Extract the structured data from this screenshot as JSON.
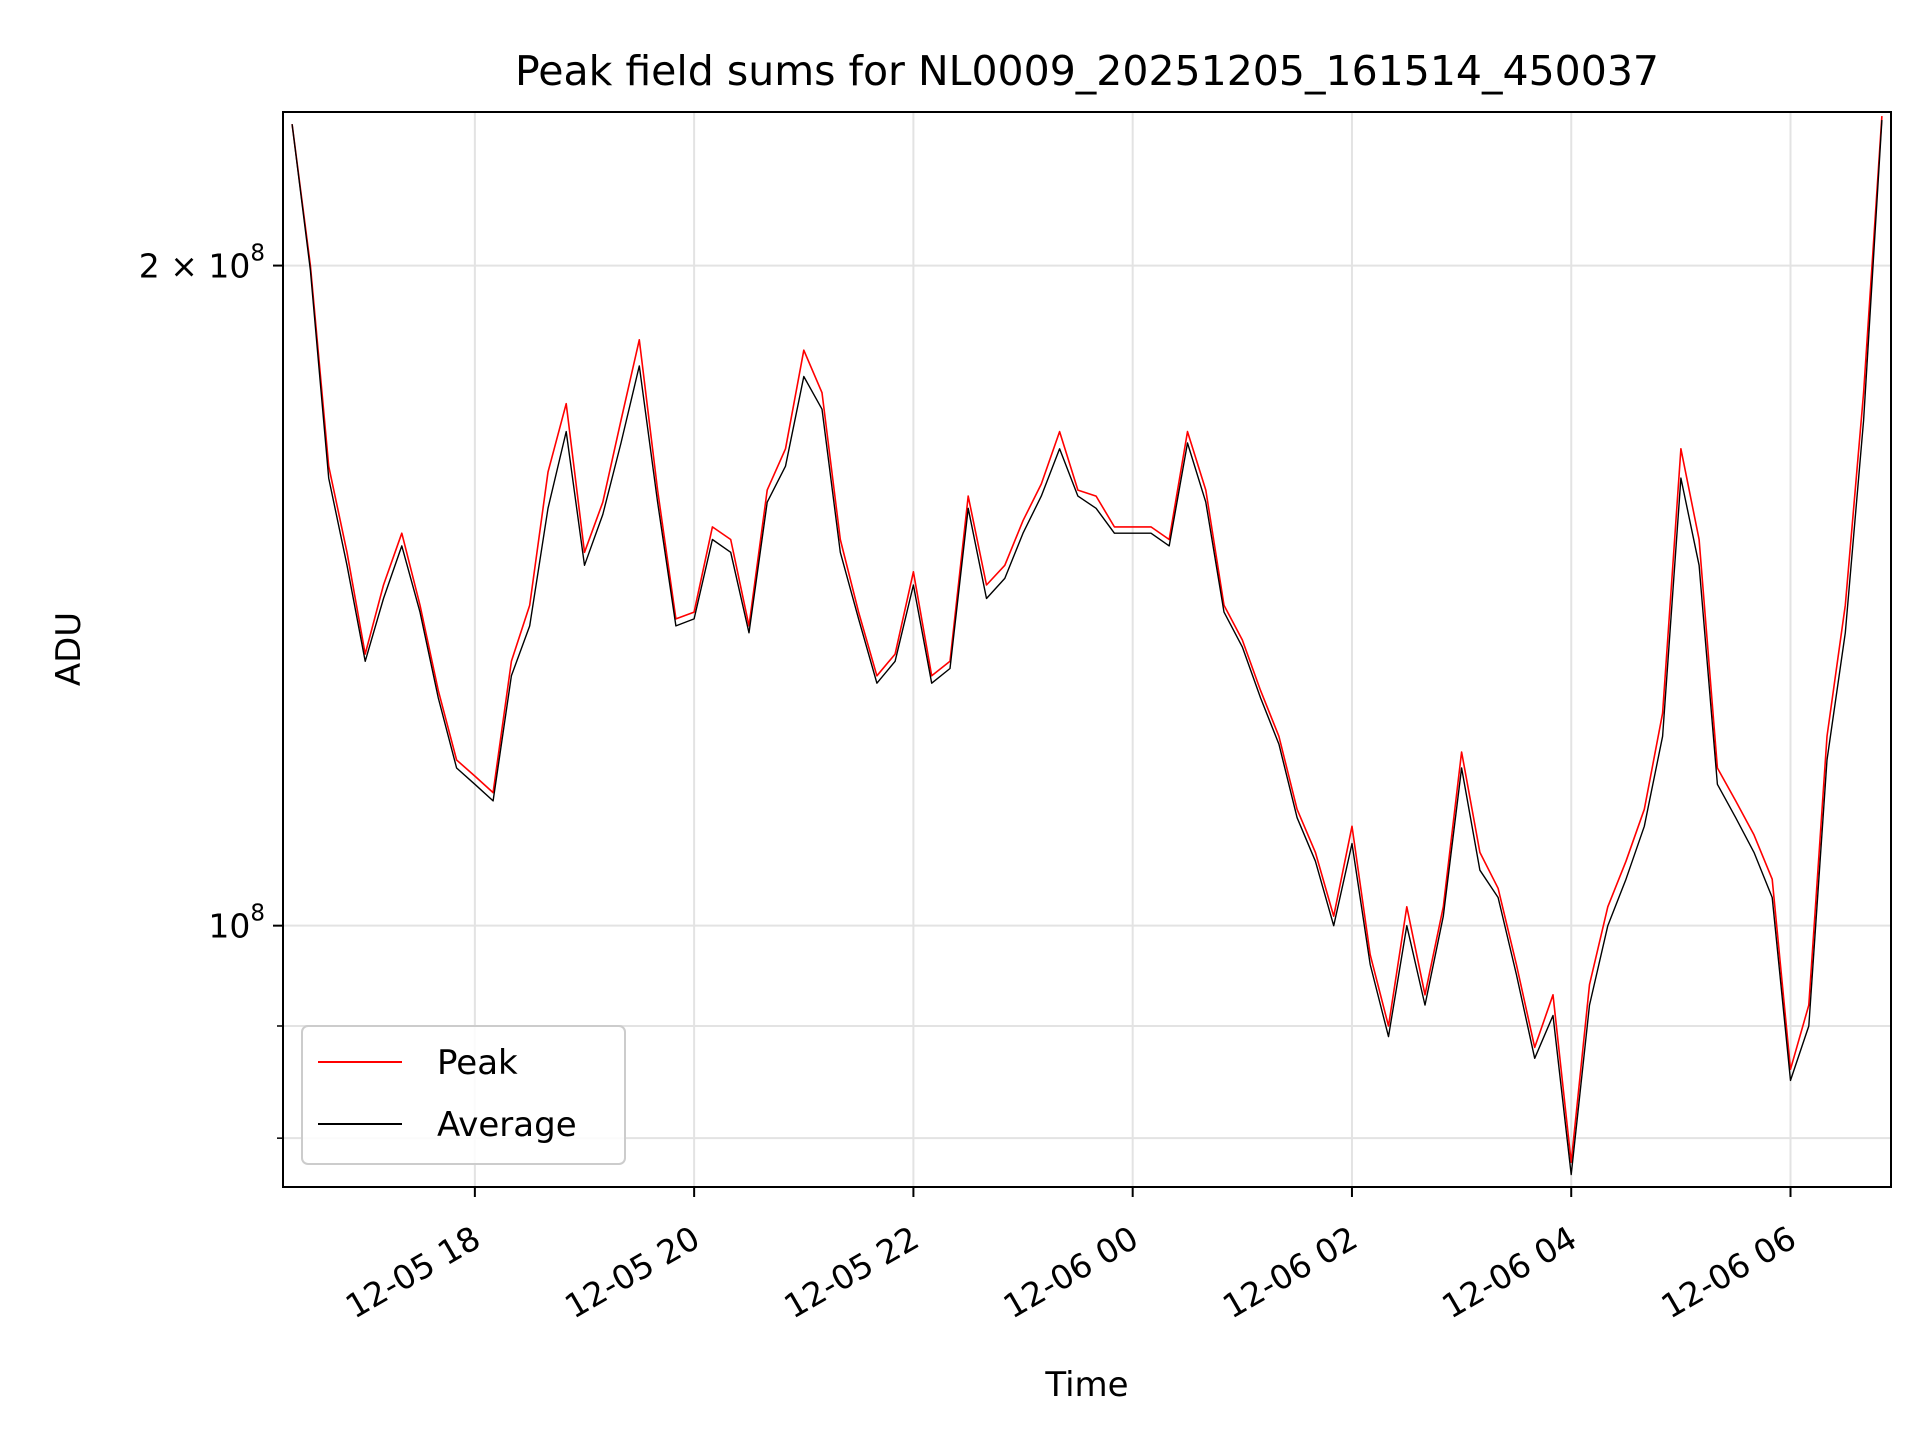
{
  "chart_data": {
    "type": "line",
    "title": "Peak field sums for NL0009_20251205_161514_450037",
    "xlabel": "Time",
    "ylabel": "ADU",
    "yscale": "log",
    "ylim": [
      76000000,
      235000000
    ],
    "xlim": [
      "2025-12-05 16:15",
      "2025-12-06 06:55"
    ],
    "grid": true,
    "legend": "lower left",
    "x_ticks": [
      {
        "t": "2025-12-05 18:00",
        "label": "12-05 18"
      },
      {
        "t": "2025-12-05 20:00",
        "label": "12-05 20"
      },
      {
        "t": "2025-12-05 22:00",
        "label": "12-05 22"
      },
      {
        "t": "2025-12-06 00:00",
        "label": "12-06 00"
      },
      {
        "t": "2025-12-06 02:00",
        "label": "12-06 02"
      },
      {
        "t": "2025-12-06 04:00",
        "label": "12-06 04"
      },
      {
        "t": "2025-12-06 06:00",
        "label": "12-06 06"
      }
    ],
    "y_ticks": [
      {
        "v": 100000000,
        "base": "10",
        "exp": "8",
        "coef": ""
      },
      {
        "v": 200000000,
        "base": "10",
        "exp": "8",
        "coef": "2 × "
      }
    ],
    "y_minor_ticks": [
      80000000,
      90000000
    ],
    "series": [
      {
        "name": "Peak",
        "color": "#ff0000",
        "x": [
          "2025-12-05 16:20",
          "2025-12-05 16:30",
          "2025-12-05 16:40",
          "2025-12-05 16:50",
          "2025-12-05 17:00",
          "2025-12-05 17:10",
          "2025-12-05 17:20",
          "2025-12-05 17:30",
          "2025-12-05 17:40",
          "2025-12-05 17:50",
          "2025-12-05 18:00",
          "2025-12-05 18:10",
          "2025-12-05 18:20",
          "2025-12-05 18:30",
          "2025-12-05 18:40",
          "2025-12-05 18:50",
          "2025-12-05 19:00",
          "2025-12-05 19:10",
          "2025-12-05 19:20",
          "2025-12-05 19:30",
          "2025-12-05 19:40",
          "2025-12-05 19:50",
          "2025-12-05 20:00",
          "2025-12-05 20:10",
          "2025-12-05 20:20",
          "2025-12-05 20:30",
          "2025-12-05 20:40",
          "2025-12-05 20:50",
          "2025-12-05 21:00",
          "2025-12-05 21:10",
          "2025-12-05 21:20",
          "2025-12-05 21:30",
          "2025-12-05 21:40",
          "2025-12-05 21:50",
          "2025-12-05 22:00",
          "2025-12-05 22:10",
          "2025-12-05 22:20",
          "2025-12-05 22:30",
          "2025-12-05 22:40",
          "2025-12-05 22:50",
          "2025-12-05 23:00",
          "2025-12-05 23:10",
          "2025-12-05 23:20",
          "2025-12-05 23:30",
          "2025-12-05 23:40",
          "2025-12-05 23:50",
          "2025-12-06 00:00",
          "2025-12-06 00:10",
          "2025-12-06 00:20",
          "2025-12-06 00:30",
          "2025-12-06 00:40",
          "2025-12-06 00:50",
          "2025-12-06 01:00",
          "2025-12-06 01:10",
          "2025-12-06 01:20",
          "2025-12-06 01:30",
          "2025-12-06 01:40",
          "2025-12-06 01:50",
          "2025-12-06 02:00",
          "2025-12-06 02:10",
          "2025-12-06 02:20",
          "2025-12-06 02:30",
          "2025-12-06 02:40",
          "2025-12-06 02:50",
          "2025-12-06 03:00",
          "2025-12-06 03:10",
          "2025-12-06 03:20",
          "2025-12-06 03:30",
          "2025-12-06 03:40",
          "2025-12-06 03:50",
          "2025-12-06 04:00",
          "2025-12-06 04:10",
          "2025-12-06 04:20",
          "2025-12-06 04:30",
          "2025-12-06 04:40",
          "2025-12-06 04:50",
          "2025-12-06 05:00",
          "2025-12-06 05:10",
          "2025-12-06 05:20",
          "2025-12-06 05:30",
          "2025-12-06 05:40",
          "2025-12-06 05:50",
          "2025-12-06 06:00",
          "2025-12-06 06:10",
          "2025-12-06 06:20",
          "2025-12-06 06:30",
          "2025-12-06 06:40",
          "2025-12-06 06:50"
        ],
        "values": [
          232000000,
          200000000,
          162000000,
          148000000,
          133000000,
          143000000,
          151000000,
          140000000,
          128000000,
          119000000,
          117000000,
          115000000,
          132000000,
          140000000,
          161000000,
          173000000,
          148000000,
          156000000,
          170000000,
          185000000,
          158000000,
          138000000,
          139000000,
          152000000,
          150000000,
          137000000,
          158000000,
          165000000,
          183000000,
          175000000,
          150000000,
          139000000,
          130000000,
          133000000,
          145000000,
          130000000,
          132000000,
          157000000,
          143000000,
          146000000,
          153000000,
          159000000,
          168000000,
          158000000,
          157000000,
          152000000,
          152000000,
          152000000,
          150000000,
          168000000,
          158000000,
          140000000,
          135000000,
          128000000,
          122000000,
          113000000,
          108000000,
          101000000,
          111000000,
          97000000,
          90000000,
          102000000,
          93000000,
          102000000,
          120000000,
          108000000,
          104000000,
          96000000,
          88000000,
          93000000,
          78000000,
          94000000,
          102000000,
          107000000,
          113000000,
          125000000,
          165000000,
          150000000,
          118000000,
          114000000,
          110000000,
          105000000,
          86000000,
          92000000,
          122000000,
          140000000,
          175000000,
          234000000
        ]
      },
      {
        "name": "Average",
        "color": "#000000",
        "x": [
          "2025-12-05 16:20",
          "2025-12-05 16:30",
          "2025-12-05 16:40",
          "2025-12-05 16:50",
          "2025-12-05 17:00",
          "2025-12-05 17:10",
          "2025-12-05 17:20",
          "2025-12-05 17:30",
          "2025-12-05 17:40",
          "2025-12-05 17:50",
          "2025-12-05 18:00",
          "2025-12-05 18:10",
          "2025-12-05 18:20",
          "2025-12-05 18:30",
          "2025-12-05 18:40",
          "2025-12-05 18:50",
          "2025-12-05 19:00",
          "2025-12-05 19:10",
          "2025-12-05 19:20",
          "2025-12-05 19:30",
          "2025-12-05 19:40",
          "2025-12-05 19:50",
          "2025-12-05 20:00",
          "2025-12-05 20:10",
          "2025-12-05 20:20",
          "2025-12-05 20:30",
          "2025-12-05 20:40",
          "2025-12-05 20:50",
          "2025-12-05 21:00",
          "2025-12-05 21:10",
          "2025-12-05 21:20",
          "2025-12-05 21:30",
          "2025-12-05 21:40",
          "2025-12-05 21:50",
          "2025-12-05 22:00",
          "2025-12-05 22:10",
          "2025-12-05 22:20",
          "2025-12-05 22:30",
          "2025-12-05 22:40",
          "2025-12-05 22:50",
          "2025-12-05 23:00",
          "2025-12-05 23:10",
          "2025-12-05 23:20",
          "2025-12-05 23:30",
          "2025-12-05 23:40",
          "2025-12-05 23:50",
          "2025-12-06 00:00",
          "2025-12-06 00:10",
          "2025-12-06 00:20",
          "2025-12-06 00:30",
          "2025-12-06 00:40",
          "2025-12-06 00:50",
          "2025-12-06 01:00",
          "2025-12-06 01:10",
          "2025-12-06 01:20",
          "2025-12-06 01:30",
          "2025-12-06 01:40",
          "2025-12-06 01:50",
          "2025-12-06 02:00",
          "2025-12-06 02:10",
          "2025-12-06 02:20",
          "2025-12-06 02:30",
          "2025-12-06 02:40",
          "2025-12-06 02:50",
          "2025-12-06 03:00",
          "2025-12-06 03:10",
          "2025-12-06 03:20",
          "2025-12-06 03:30",
          "2025-12-06 03:40",
          "2025-12-06 03:50",
          "2025-12-06 04:00",
          "2025-12-06 04:10",
          "2025-12-06 04:20",
          "2025-12-06 04:30",
          "2025-12-06 04:40",
          "2025-12-06 04:50",
          "2025-12-06 05:00",
          "2025-12-06 05:10",
          "2025-12-06 05:20",
          "2025-12-06 05:30",
          "2025-12-06 05:40",
          "2025-12-06 05:50",
          "2025-12-06 06:00",
          "2025-12-06 06:10",
          "2025-12-06 06:20",
          "2025-12-06 06:30",
          "2025-12-06 06:40",
          "2025-12-06 06:50"
        ],
        "values": [
          232000000,
          199000000,
          160000000,
          146000000,
          132000000,
          141000000,
          149000000,
          139000000,
          127000000,
          118000000,
          116000000,
          114000000,
          130000000,
          137000000,
          155000000,
          168000000,
          146000000,
          154000000,
          166000000,
          180000000,
          156000000,
          137000000,
          138000000,
          150000000,
          148000000,
          136000000,
          156000000,
          162000000,
          178000000,
          172000000,
          148000000,
          138000000,
          129000000,
          132000000,
          143000000,
          129000000,
          131000000,
          155000000,
          141000000,
          144000000,
          151000000,
          157000000,
          165000000,
          157000000,
          155000000,
          151000000,
          151000000,
          151000000,
          149000000,
          166000000,
          156000000,
          139000000,
          134000000,
          127000000,
          121000000,
          112000000,
          107000000,
          100000000,
          109000000,
          96000000,
          89000000,
          100000000,
          92000000,
          101000000,
          118000000,
          106000000,
          103000000,
          95000000,
          87000000,
          91000000,
          77000000,
          92000000,
          100000000,
          105000000,
          111000000,
          122000000,
          160000000,
          146000000,
          116000000,
          112000000,
          108000000,
          103000000,
          85000000,
          90000000,
          119000000,
          136000000,
          170000000,
          233000000
        ]
      }
    ]
  }
}
